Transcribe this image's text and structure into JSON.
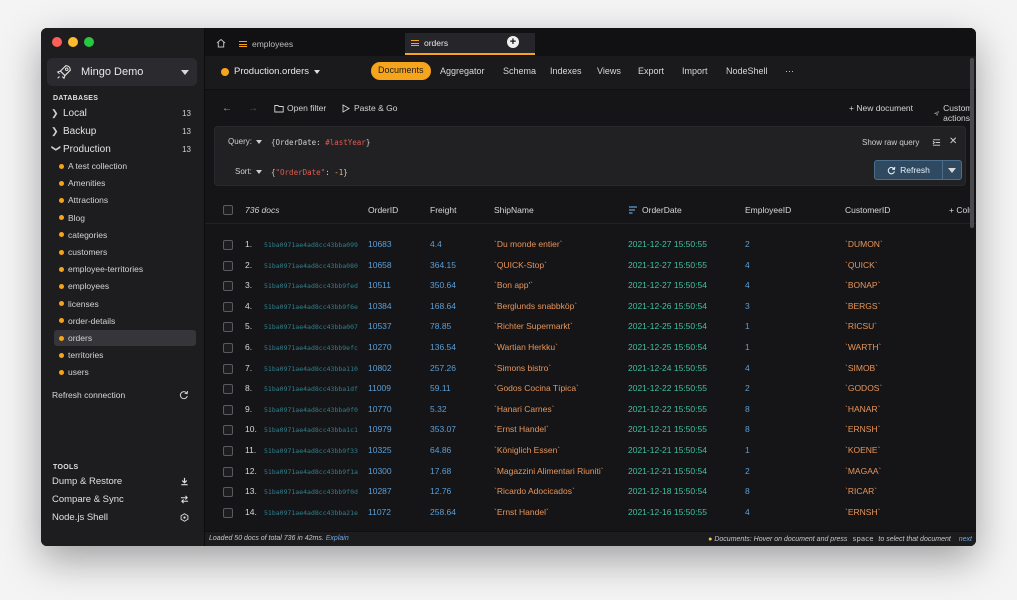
{
  "sidebar": {
    "connection_name": "Mingo Demo",
    "databases_title": "DATABASES",
    "databases": [
      {
        "label": "Local",
        "count": "13",
        "expanded": false
      },
      {
        "label": "Backup",
        "count": "13",
        "expanded": false
      },
      {
        "label": "Production",
        "count": "13",
        "expanded": true
      }
    ],
    "collections": [
      "A test collection",
      "Amenities",
      "Attractions",
      "Blog",
      "categories",
      "customers",
      "employee-territories",
      "employees",
      "licenses",
      "order-details",
      "orders",
      "territories",
      "users"
    ],
    "active_collection": "orders",
    "refresh_label": "Refresh connection",
    "tools_title": "TOOLS",
    "tools": [
      "Dump & Restore",
      "Compare & Sync",
      "Node.js Shell"
    ]
  },
  "tabs": [
    "employees",
    "orders"
  ],
  "toolbar": {
    "namespace": "Production.orders",
    "nav": [
      "Documents",
      "Aggregator",
      "Schema",
      "Indexes",
      "Views",
      "Export",
      "Import",
      "NodeShell",
      "···"
    ],
    "active_nav": "Documents"
  },
  "actions": {
    "open_filter": "Open filter",
    "paste_go": "Paste & Go",
    "new_document": "+ New document",
    "custom_actions": "Custom actions"
  },
  "query": {
    "query_label": "Query:",
    "query_open": "{OrderDate: ",
    "query_token": "#lastYear",
    "query_close": "}",
    "sort_label": "Sort:",
    "sort_open": "{",
    "sort_key": "\"OrderDate\"",
    "sort_mid": ": ",
    "sort_val": "-1",
    "sort_close": "}",
    "show_raw": "Show raw query",
    "refresh": "Refresh"
  },
  "table": {
    "doc_count": "736 docs",
    "columns": [
      "OrderID",
      "Freight",
      "ShipName",
      "OrderDate",
      "EmployeeID",
      "CustomerID",
      "+ Colu"
    ],
    "rows": [
      {
        "idx": "1.",
        "oid": "51ba0971ae4ad8cc43bba099",
        "order": "10683",
        "freight": "4.4",
        "ship": "`Du monde entier`",
        "date": "2021-12-27 15:50:55",
        "emp": "2",
        "cust": "`DUMON`"
      },
      {
        "idx": "2.",
        "oid": "51ba0971ae4ad8cc43bba080",
        "order": "10658",
        "freight": "364.15",
        "ship": "`QUICK-Stop`",
        "date": "2021-12-27 15:50:55",
        "emp": "4",
        "cust": "`QUICK`"
      },
      {
        "idx": "3.",
        "oid": "51ba0971ae4ad8cc43bb9fed",
        "order": "10511",
        "freight": "350.64",
        "ship": "`Bon app'`",
        "date": "2021-12-27 15:50:54",
        "emp": "4",
        "cust": "`BONAP`"
      },
      {
        "idx": "4.",
        "oid": "51ba0971ae4ad8cc43bb9f6e",
        "order": "10384",
        "freight": "168.64",
        "ship": "`Berglunds snabbköp`",
        "date": "2021-12-26 15:50:54",
        "emp": "3",
        "cust": "`BERGS`"
      },
      {
        "idx": "5.",
        "oid": "51ba0971ae4ad8cc43bba007",
        "order": "10537",
        "freight": "78.85",
        "ship": "`Richter Supermarkt`",
        "date": "2021-12-25 15:50:54",
        "emp": "1",
        "cust": "`RICSU`"
      },
      {
        "idx": "6.",
        "oid": "51ba0971ae4ad8cc43bb9efc",
        "order": "10270",
        "freight": "136.54",
        "ship": "`Wartian Herkku`",
        "date": "2021-12-25 15:50:54",
        "emp": "1",
        "cust": "`WARTH`"
      },
      {
        "idx": "7.",
        "oid": "51ba0971ae4ad8cc43bba110",
        "order": "10802",
        "freight": "257.26",
        "ship": "`Simons bistro`",
        "date": "2021-12-24 15:50:55",
        "emp": "4",
        "cust": "`SIMOB`"
      },
      {
        "idx": "8.",
        "oid": "51ba0971ae4ad8cc43bba1df",
        "order": "11009",
        "freight": "59.11",
        "ship": "`Godos Cocina Típica`",
        "date": "2021-12-22 15:50:55",
        "emp": "2",
        "cust": "`GODOS`"
      },
      {
        "idx": "9.",
        "oid": "51ba0971ae4ad8cc43bba0f0",
        "order": "10770",
        "freight": "5.32",
        "ship": "`Hanari Carnes`",
        "date": "2021-12-22 15:50:55",
        "emp": "8",
        "cust": "`HANAR`"
      },
      {
        "idx": "10.",
        "oid": "51ba0971ae4ad8cc43bba1c1",
        "order": "10979",
        "freight": "353.07",
        "ship": "`Ernst Handel`",
        "date": "2021-12-21 15:50:55",
        "emp": "8",
        "cust": "`ERNSH`"
      },
      {
        "idx": "11.",
        "oid": "51ba0971ae4ad8cc43bb9f33",
        "order": "10325",
        "freight": "64.86",
        "ship": "`Königlich Essen`",
        "date": "2021-12-21 15:50:54",
        "emp": "1",
        "cust": "`KOENE`"
      },
      {
        "idx": "12.",
        "oid": "51ba0971ae4ad8cc43bb9f1a",
        "order": "10300",
        "freight": "17.68",
        "ship": "`Magazzini Alimentari Riuniti`",
        "date": "2021-12-21 15:50:54",
        "emp": "2",
        "cust": "`MAGAA`"
      },
      {
        "idx": "13.",
        "oid": "51ba0971ae4ad8cc43bb9f0d",
        "order": "10287",
        "freight": "12.76",
        "ship": "`Ricardo Adocicados`",
        "date": "2021-12-18 15:50:54",
        "emp": "8",
        "cust": "`RICAR`"
      },
      {
        "idx": "14.",
        "oid": "51ba0971ae4ad8cc43bba21e",
        "order": "11072",
        "freight": "258.64",
        "ship": "`Ernst Handel`",
        "date": "2021-12-16 15:50:55",
        "emp": "4",
        "cust": "`ERNSH`"
      }
    ]
  },
  "status": {
    "left": "Loaded 50 docs of total 736 in 42ms.",
    "explain": "Explain",
    "hint_pre": "Documents: Hover on document and press",
    "hint_key": "space",
    "hint_post": "to select that document",
    "next": "next"
  },
  "colors": {
    "accent": "#f5a41b",
    "number": "#5b9fd8",
    "string": "#e8955a",
    "date": "#3fc0a0"
  }
}
